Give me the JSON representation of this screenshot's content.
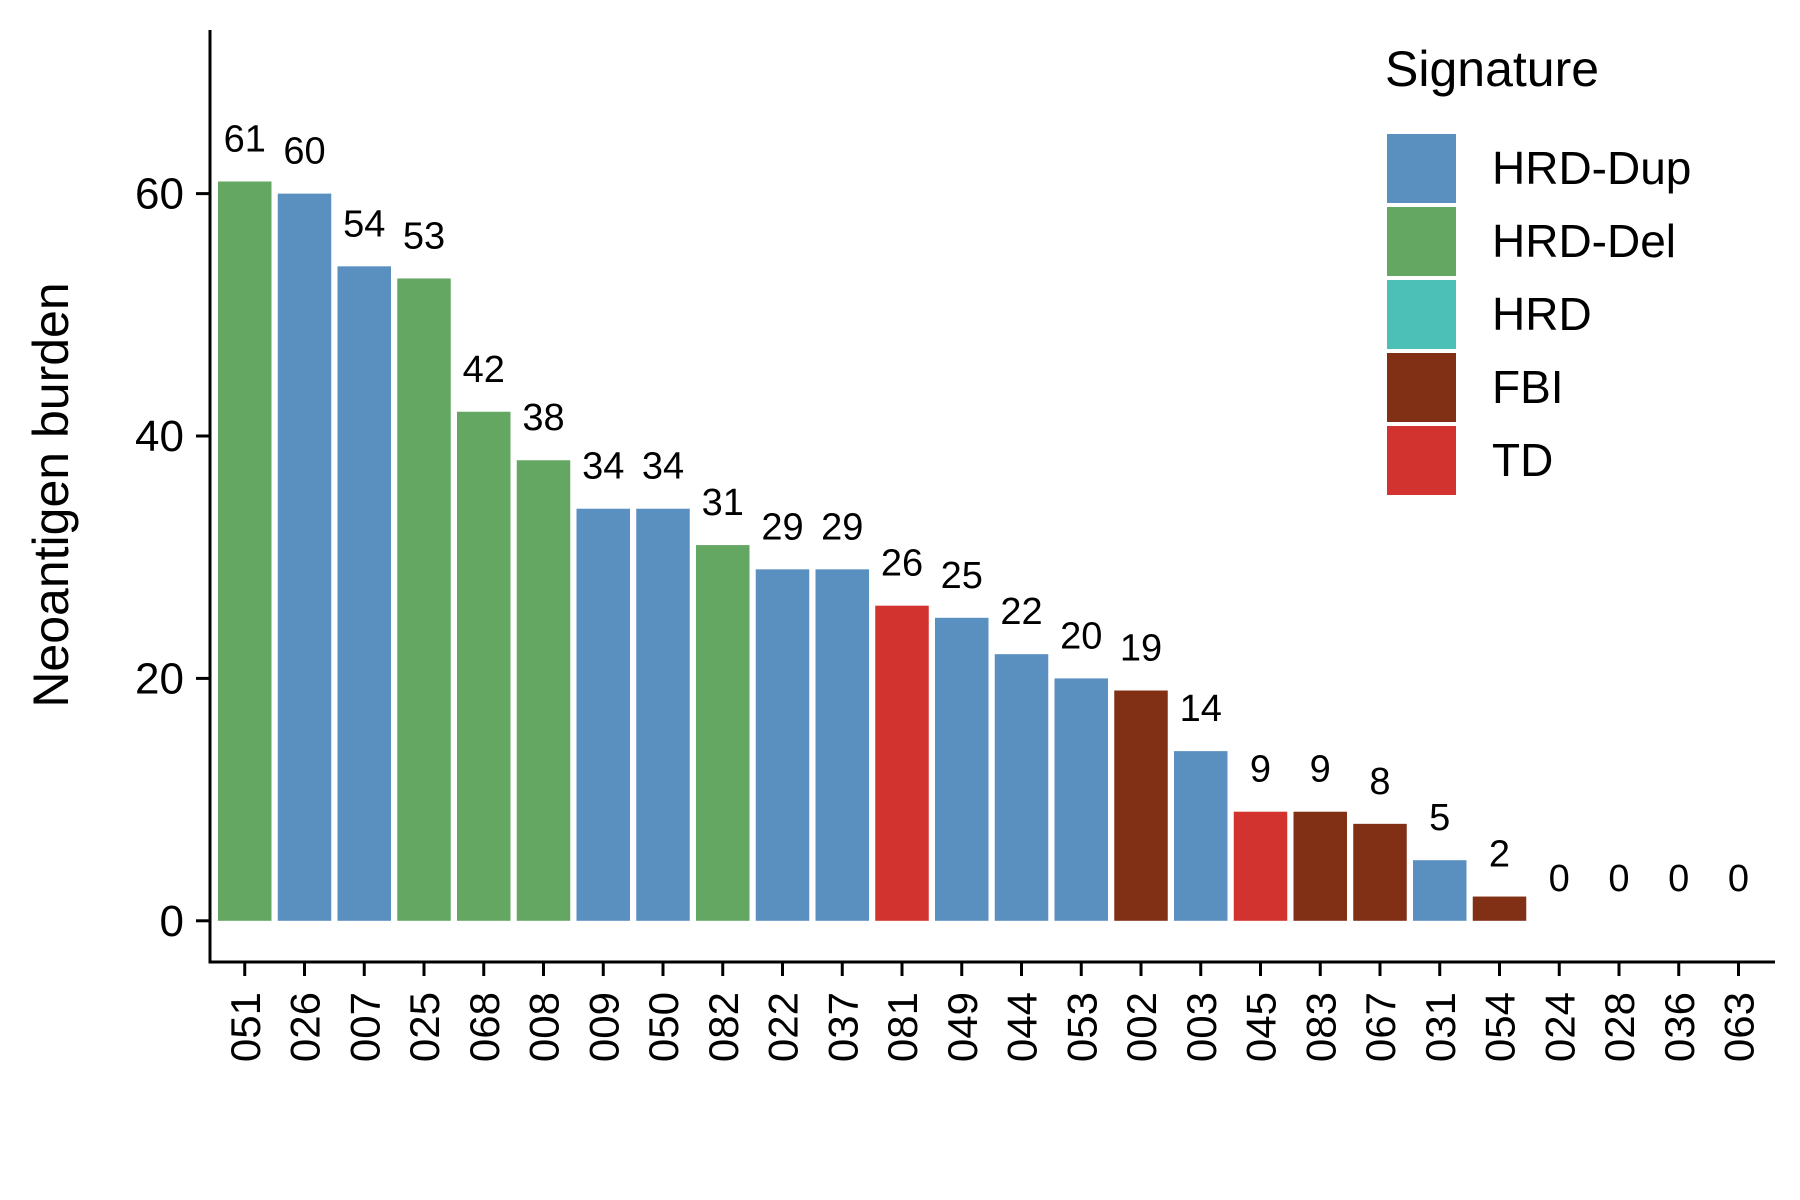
{
  "chart_data": {
    "type": "bar",
    "title": "",
    "xlabel": "",
    "ylabel": "Neoantigen burden",
    "ylim": [
      -3.4,
      73.5
    ],
    "yticks": [
      0,
      20,
      40,
      60
    ],
    "grid": false,
    "legend_placement": "top-right",
    "legend": {
      "title": "Signature",
      "entries": [
        {
          "name": "HRD-Dup",
          "color": "#5A90C0"
        },
        {
          "name": "HRD-Del",
          "color": "#63A763"
        },
        {
          "name": "HRD",
          "color": "#4CC0B6"
        },
        {
          "name": "FBI",
          "color": "#813016"
        },
        {
          "name": "TD",
          "color": "#D2332E"
        }
      ]
    },
    "categories": [
      "051",
      "026",
      "007",
      "025",
      "068",
      "008",
      "009",
      "050",
      "082",
      "022",
      "037",
      "081",
      "049",
      "044",
      "053",
      "002",
      "003",
      "045",
      "083",
      "067",
      "031",
      "054",
      "024",
      "028",
      "036",
      "063"
    ],
    "values": [
      61,
      60,
      54,
      53,
      42,
      38,
      34,
      34,
      31,
      29,
      29,
      26,
      25,
      22,
      20,
      19,
      14,
      9,
      9,
      8,
      5,
      2,
      0,
      0,
      0,
      0
    ],
    "labels": [
      "61",
      "60",
      "54",
      "53",
      "42",
      "38",
      "34",
      "34",
      "31",
      "29",
      "29",
      "26",
      "25",
      "22",
      "20",
      "19",
      "14",
      "9",
      "9",
      "8",
      "5",
      "2",
      "0",
      "0",
      "0",
      "0"
    ],
    "signature": [
      "HRD-Del",
      "HRD-Dup",
      "HRD-Dup",
      "HRD-Del",
      "HRD-Del",
      "HRD-Del",
      "HRD-Dup",
      "HRD-Dup",
      "HRD-Del",
      "HRD-Dup",
      "HRD-Dup",
      "TD",
      "HRD-Dup",
      "HRD-Dup",
      "HRD-Dup",
      "FBI",
      "HRD-Dup",
      "TD",
      "FBI",
      "FBI",
      "HRD-Dup",
      "FBI",
      "HRD-Dup",
      "HRD-Dup",
      "HRD-Dup",
      "HRD-Dup"
    ]
  }
}
